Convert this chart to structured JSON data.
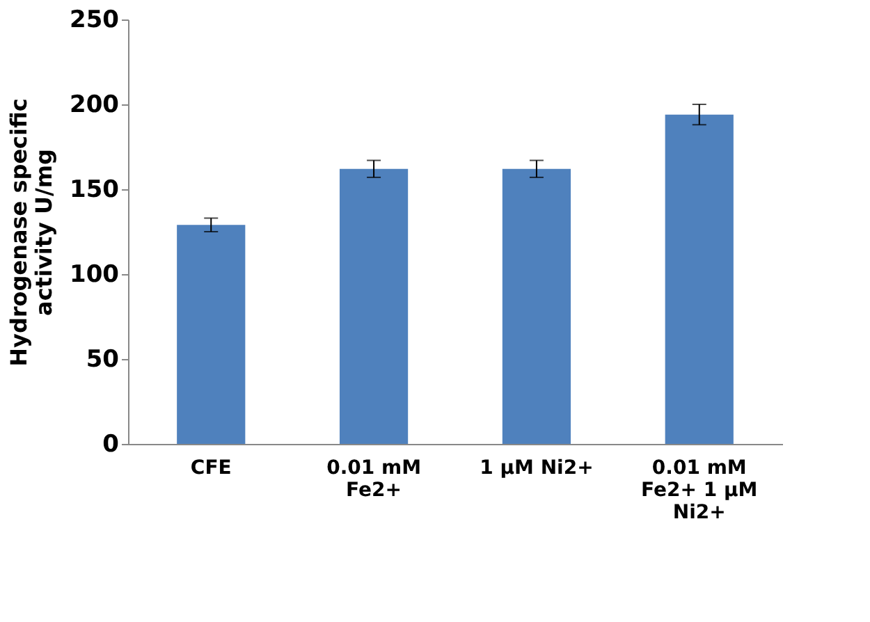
{
  "chart_data": {
    "type": "bar",
    "ylabel": "Hydrogenase specific activity U/mg",
    "categories": [
      "CFE",
      "0.01 mM Fe2+",
      "1 µM Ni2+",
      "0.01 mM Fe2+ 1 µM Ni2+"
    ],
    "values": [
      129,
      162,
      162,
      194
    ],
    "errors": [
      4,
      5,
      5,
      6
    ],
    "color": "#4f81bd",
    "ylim": [
      0,
      250
    ],
    "yticks": [
      0,
      50,
      100,
      150,
      200,
      250
    ],
    "grid": false
  }
}
